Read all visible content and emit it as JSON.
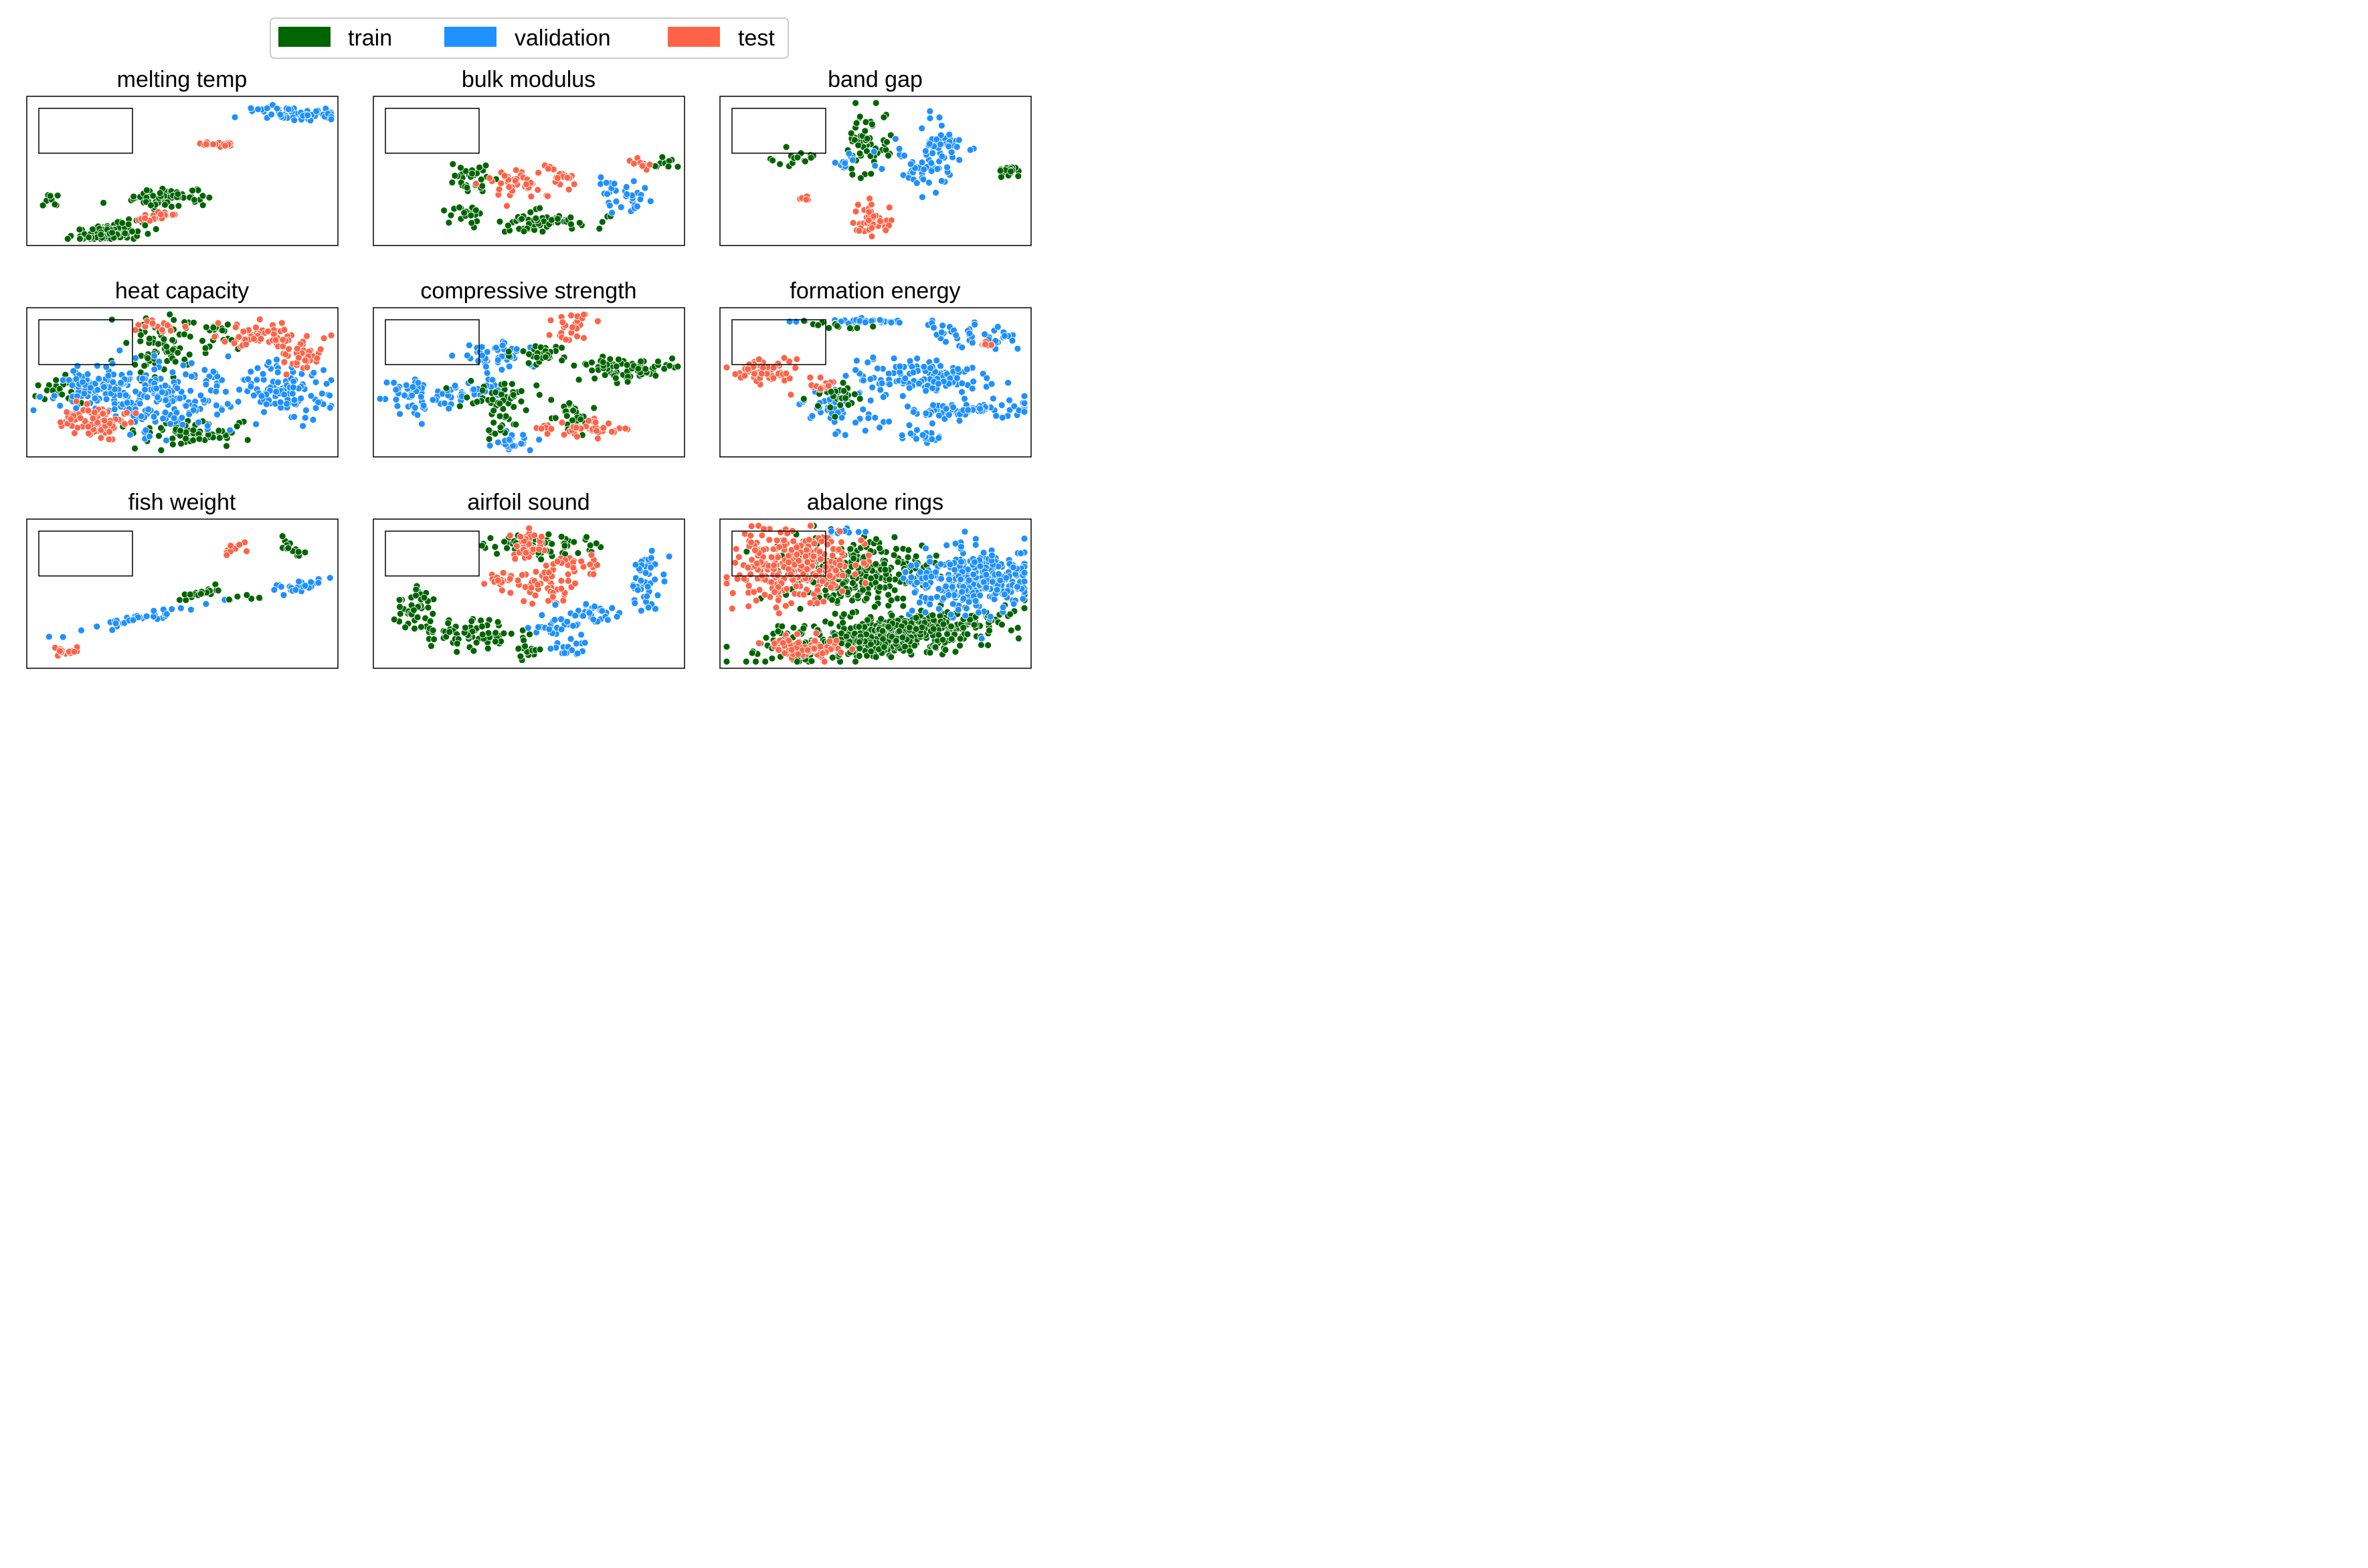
{
  "legend": {
    "items": [
      {
        "label": "train",
        "color": "#006400"
      },
      {
        "label": "validation",
        "color": "#1E90FF"
      },
      {
        "label": "test",
        "color": "#FF6347"
      }
    ]
  },
  "chart_data": [
    {
      "type": "scatter",
      "title": "melting temp",
      "clusters": [
        {
          "split": "train",
          "x": 0.25,
          "y": 0.95,
          "sx": 0.06,
          "sy": 0.03,
          "n": 110,
          "angle": -20
        },
        {
          "split": "train",
          "x": 0.46,
          "y": 0.7,
          "sx": 0.07,
          "sy": 0.035,
          "n": 70,
          "angle": -10
        },
        {
          "split": "train",
          "x": 0.06,
          "y": 0.72,
          "sx": 0.02,
          "sy": 0.03,
          "n": 8,
          "angle": 0
        },
        {
          "split": "test",
          "x": 0.43,
          "y": 0.84,
          "sx": 0.05,
          "sy": 0.02,
          "n": 18,
          "angle": -20
        },
        {
          "split": "test",
          "x": 0.61,
          "y": 0.3,
          "sx": 0.025,
          "sy": 0.012,
          "n": 18,
          "angle": 0
        },
        {
          "split": "validation",
          "x": 0.87,
          "y": 0.08,
          "sx": 0.07,
          "sy": 0.025,
          "n": 70,
          "angle": 5
        }
      ]
    },
    {
      "type": "scatter",
      "title": "bulk modulus",
      "clusters": [
        {
          "split": "train",
          "x": 0.3,
          "y": 0.55,
          "sx": 0.04,
          "sy": 0.05,
          "n": 30,
          "angle": 0
        },
        {
          "split": "train",
          "x": 0.28,
          "y": 0.8,
          "sx": 0.04,
          "sy": 0.03,
          "n": 20,
          "angle": 0
        },
        {
          "split": "train",
          "x": 0.53,
          "y": 0.88,
          "sx": 0.09,
          "sy": 0.04,
          "n": 60,
          "angle": 0
        },
        {
          "split": "train",
          "x": 0.94,
          "y": 0.45,
          "sx": 0.04,
          "sy": 0.02,
          "n": 12,
          "angle": 0
        },
        {
          "split": "test",
          "x": 0.45,
          "y": 0.58,
          "sx": 0.06,
          "sy": 0.06,
          "n": 40,
          "angle": 0
        },
        {
          "split": "test",
          "x": 0.6,
          "y": 0.55,
          "sx": 0.04,
          "sy": 0.06,
          "n": 20,
          "angle": 0
        },
        {
          "split": "test",
          "x": 0.88,
          "y": 0.45,
          "sx": 0.03,
          "sy": 0.02,
          "n": 10,
          "angle": 0
        },
        {
          "split": "validation",
          "x": 0.79,
          "y": 0.62,
          "sx": 0.04,
          "sy": 0.03,
          "n": 15,
          "angle": 0
        },
        {
          "split": "validation",
          "x": 0.83,
          "y": 0.72,
          "sx": 0.03,
          "sy": 0.04,
          "n": 20,
          "angle": 0
        }
      ]
    },
    {
      "type": "scatter",
      "title": "band gap",
      "clusters": [
        {
          "split": "train",
          "x": 0.48,
          "y": 0.3,
          "sx": 0.04,
          "sy": 0.12,
          "n": 55,
          "angle": 0
        },
        {
          "split": "train",
          "x": 0.95,
          "y": 0.5,
          "sx": 0.02,
          "sy": 0.03,
          "n": 20,
          "angle": 0
        },
        {
          "split": "train",
          "x": 0.24,
          "y": 0.4,
          "sx": 0.04,
          "sy": 0.03,
          "n": 15,
          "angle": 0
        },
        {
          "split": "validation",
          "x": 0.62,
          "y": 0.45,
          "sx": 0.06,
          "sy": 0.08,
          "n": 45,
          "angle": -30
        },
        {
          "split": "validation",
          "x": 0.7,
          "y": 0.3,
          "sx": 0.04,
          "sy": 0.1,
          "n": 30,
          "angle": 0
        },
        {
          "split": "validation",
          "x": 0.39,
          "y": 0.45,
          "sx": 0.02,
          "sy": 0.03,
          "n": 10,
          "angle": 0
        },
        {
          "split": "validation",
          "x": 0.75,
          "y": 0.3,
          "sx": 0.05,
          "sy": 0.03,
          "n": 15,
          "angle": 0
        },
        {
          "split": "test",
          "x": 0.49,
          "y": 0.87,
          "sx": 0.03,
          "sy": 0.05,
          "n": 50,
          "angle": 0
        },
        {
          "split": "test",
          "x": 0.26,
          "y": 0.7,
          "sx": 0.01,
          "sy": 0.01,
          "n": 5,
          "angle": 0
        }
      ]
    },
    {
      "type": "scatter",
      "title": "heat capacity",
      "clusters": [
        {
          "split": "train",
          "x": 0.43,
          "y": 0.25,
          "sx": 0.07,
          "sy": 0.12,
          "n": 70,
          "angle": 0
        },
        {
          "split": "train",
          "x": 0.12,
          "y": 0.55,
          "sx": 0.06,
          "sy": 0.06,
          "n": 40,
          "angle": 0
        },
        {
          "split": "train",
          "x": 0.53,
          "y": 0.88,
          "sx": 0.09,
          "sy": 0.05,
          "n": 70,
          "angle": 0
        },
        {
          "split": "train",
          "x": 0.62,
          "y": 0.15,
          "sx": 0.05,
          "sy": 0.06,
          "n": 30,
          "angle": 0
        },
        {
          "split": "validation",
          "x": 0.4,
          "y": 0.6,
          "sx": 0.14,
          "sy": 0.12,
          "n": 230,
          "angle": 0
        },
        {
          "split": "validation",
          "x": 0.83,
          "y": 0.55,
          "sx": 0.08,
          "sy": 0.1,
          "n": 110,
          "angle": -20
        },
        {
          "split": "validation",
          "x": 0.2,
          "y": 0.5,
          "sx": 0.06,
          "sy": 0.06,
          "n": 40,
          "angle": 0
        },
        {
          "split": "test",
          "x": 0.77,
          "y": 0.15,
          "sx": 0.07,
          "sy": 0.05,
          "n": 60,
          "angle": 0
        },
        {
          "split": "test",
          "x": 0.88,
          "y": 0.3,
          "sx": 0.04,
          "sy": 0.06,
          "n": 40,
          "angle": 0
        },
        {
          "split": "test",
          "x": 0.25,
          "y": 0.8,
          "sx": 0.05,
          "sy": 0.05,
          "n": 50,
          "angle": 0
        },
        {
          "split": "test",
          "x": 0.14,
          "y": 0.75,
          "sx": 0.03,
          "sy": 0.05,
          "n": 25,
          "angle": 0
        },
        {
          "split": "test",
          "x": 0.42,
          "y": 0.1,
          "sx": 0.04,
          "sy": 0.03,
          "n": 15,
          "angle": 0
        }
      ]
    },
    {
      "type": "scatter",
      "title": "compressive strength",
      "clusters": [
        {
          "split": "validation",
          "x": 0.12,
          "y": 0.6,
          "sx": 0.05,
          "sy": 0.08,
          "n": 50,
          "angle": 0
        },
        {
          "split": "validation",
          "x": 0.28,
          "y": 0.62,
          "sx": 0.03,
          "sy": 0.06,
          "n": 20,
          "angle": 0
        },
        {
          "split": "validation",
          "x": 0.4,
          "y": 0.3,
          "sx": 0.08,
          "sy": 0.05,
          "n": 50,
          "angle": 0
        },
        {
          "split": "validation",
          "x": 0.46,
          "y": 0.93,
          "sx": 0.03,
          "sy": 0.03,
          "n": 25,
          "angle": 0
        },
        {
          "split": "validation",
          "x": 0.37,
          "y": 0.52,
          "sx": 0.03,
          "sy": 0.03,
          "n": 15,
          "angle": 0
        },
        {
          "split": "train",
          "x": 0.83,
          "y": 0.4,
          "sx": 0.09,
          "sy": 0.04,
          "n": 80,
          "angle": -5
        },
        {
          "split": "train",
          "x": 0.41,
          "y": 0.6,
          "sx": 0.06,
          "sy": 0.06,
          "n": 40,
          "angle": 0
        },
        {
          "split": "train",
          "x": 0.63,
          "y": 0.75,
          "sx": 0.04,
          "sy": 0.06,
          "n": 30,
          "angle": 0
        },
        {
          "split": "train",
          "x": 0.4,
          "y": 0.8,
          "sx": 0.03,
          "sy": 0.05,
          "n": 20,
          "angle": 0
        },
        {
          "split": "train",
          "x": 0.55,
          "y": 0.3,
          "sx": 0.05,
          "sy": 0.04,
          "n": 30,
          "angle": 0
        },
        {
          "split": "test",
          "x": 0.65,
          "y": 0.12,
          "sx": 0.03,
          "sy": 0.06,
          "n": 25,
          "angle": 0
        },
        {
          "split": "test",
          "x": 0.7,
          "y": 0.85,
          "sx": 0.05,
          "sy": 0.04,
          "n": 35,
          "angle": 0
        },
        {
          "split": "test",
          "x": 0.55,
          "y": 0.85,
          "sx": 0.02,
          "sy": 0.02,
          "n": 8,
          "angle": 0
        }
      ]
    },
    {
      "type": "scatter",
      "title": "formation energy",
      "clusters": [
        {
          "split": "validation",
          "x": 0.64,
          "y": 0.45,
          "sx": 0.12,
          "sy": 0.07,
          "n": 120,
          "angle": 10
        },
        {
          "split": "validation",
          "x": 0.84,
          "y": 0.7,
          "sx": 0.1,
          "sy": 0.03,
          "n": 90,
          "angle": -5
        },
        {
          "split": "validation",
          "x": 0.38,
          "y": 0.7,
          "sx": 0.07,
          "sy": 0.08,
          "n": 60,
          "angle": 0
        },
        {
          "split": "validation",
          "x": 0.66,
          "y": 0.9,
          "sx": 0.03,
          "sy": 0.02,
          "n": 20,
          "angle": 0
        },
        {
          "split": "validation",
          "x": 0.5,
          "y": 0.05,
          "sx": 0.12,
          "sy": 0.01,
          "n": 40,
          "angle": 0
        },
        {
          "split": "validation",
          "x": 0.8,
          "y": 0.15,
          "sx": 0.1,
          "sy": 0.04,
          "n": 40,
          "angle": 20
        },
        {
          "split": "train",
          "x": 0.38,
          "y": 0.6,
          "sx": 0.04,
          "sy": 0.06,
          "n": 30,
          "angle": 0
        },
        {
          "split": "train",
          "x": 0.35,
          "y": 0.08,
          "sx": 0.06,
          "sy": 0.02,
          "n": 15,
          "angle": 0
        },
        {
          "split": "test",
          "x": 0.12,
          "y": 0.42,
          "sx": 0.05,
          "sy": 0.04,
          "n": 70,
          "angle": 0
        },
        {
          "split": "test",
          "x": 0.32,
          "y": 0.52,
          "sx": 0.03,
          "sy": 0.02,
          "n": 15,
          "angle": 0
        },
        {
          "split": "test",
          "x": 0.88,
          "y": 0.22,
          "sx": 0.02,
          "sy": 0.01,
          "n": 8,
          "angle": 0
        }
      ]
    },
    {
      "type": "scatter",
      "title": "fish weight",
      "clusters": [
        {
          "split": "test",
          "x": 0.1,
          "y": 0.92,
          "sx": 0.04,
          "sy": 0.02,
          "n": 15,
          "angle": -25
        },
        {
          "split": "validation",
          "x": 0.36,
          "y": 0.68,
          "sx": 0.12,
          "sy": 0.015,
          "n": 40,
          "angle": -25
        },
        {
          "split": "validation",
          "x": 0.88,
          "y": 0.45,
          "sx": 0.06,
          "sy": 0.02,
          "n": 25,
          "angle": -25
        },
        {
          "split": "train",
          "x": 0.56,
          "y": 0.5,
          "sx": 0.05,
          "sy": 0.015,
          "n": 20,
          "angle": -30
        },
        {
          "split": "train",
          "x": 0.86,
          "y": 0.16,
          "sx": 0.02,
          "sy": 0.04,
          "n": 15,
          "angle": -30
        },
        {
          "split": "train",
          "x": 0.72,
          "y": 0.52,
          "sx": 0.03,
          "sy": 0.01,
          "n": 6,
          "angle": 0
        },
        {
          "split": "test",
          "x": 0.66,
          "y": 0.18,
          "sx": 0.04,
          "sy": 0.02,
          "n": 10,
          "angle": -30
        }
      ]
    },
    {
      "type": "scatter",
      "title": "airfoil sound",
      "clusters": [
        {
          "split": "train",
          "x": 0.12,
          "y": 0.6,
          "sx": 0.03,
          "sy": 0.08,
          "n": 40,
          "angle": 0
        },
        {
          "split": "train",
          "x": 0.28,
          "y": 0.8,
          "sx": 0.09,
          "sy": 0.05,
          "n": 70,
          "angle": 0
        },
        {
          "split": "train",
          "x": 0.55,
          "y": 0.15,
          "sx": 0.09,
          "sy": 0.05,
          "n": 60,
          "angle": 0
        },
        {
          "split": "train",
          "x": 0.5,
          "y": 0.92,
          "sx": 0.02,
          "sy": 0.03,
          "n": 15,
          "angle": 0
        },
        {
          "split": "test",
          "x": 0.5,
          "y": 0.15,
          "sx": 0.03,
          "sy": 0.06,
          "n": 40,
          "angle": 0
        },
        {
          "split": "test",
          "x": 0.55,
          "y": 0.45,
          "sx": 0.05,
          "sy": 0.07,
          "n": 50,
          "angle": 0
        },
        {
          "split": "test",
          "x": 0.66,
          "y": 0.3,
          "sx": 0.04,
          "sy": 0.05,
          "n": 25,
          "angle": 0
        },
        {
          "split": "test",
          "x": 0.4,
          "y": 0.4,
          "sx": 0.02,
          "sy": 0.04,
          "n": 15,
          "angle": 0
        },
        {
          "split": "validation",
          "x": 0.9,
          "y": 0.4,
          "sx": 0.03,
          "sy": 0.1,
          "n": 50,
          "angle": 0
        },
        {
          "split": "validation",
          "x": 0.72,
          "y": 0.65,
          "sx": 0.06,
          "sy": 0.04,
          "n": 35,
          "angle": 0
        },
        {
          "split": "validation",
          "x": 0.58,
          "y": 0.75,
          "sx": 0.05,
          "sy": 0.04,
          "n": 25,
          "angle": 0
        },
        {
          "split": "validation",
          "x": 0.63,
          "y": 0.9,
          "sx": 0.03,
          "sy": 0.03,
          "n": 15,
          "angle": 0
        }
      ]
    },
    {
      "type": "scatter",
      "title": "abalone rings",
      "clusters": [
        {
          "split": "train",
          "x": 0.55,
          "y": 0.8,
          "sx": 0.2,
          "sy": 0.08,
          "n": 520,
          "angle": -18
        },
        {
          "split": "train",
          "x": 0.43,
          "y": 0.35,
          "sx": 0.13,
          "sy": 0.12,
          "n": 280,
          "angle": 0
        },
        {
          "split": "validation",
          "x": 0.82,
          "y": 0.4,
          "sx": 0.1,
          "sy": 0.12,
          "n": 330,
          "angle": 0
        },
        {
          "split": "validation",
          "x": 0.4,
          "y": 0.05,
          "sx": 0.04,
          "sy": 0.01,
          "n": 10,
          "angle": 0
        },
        {
          "split": "test",
          "x": 0.22,
          "y": 0.3,
          "sx": 0.1,
          "sy": 0.14,
          "n": 280,
          "angle": 0
        },
        {
          "split": "test",
          "x": 0.28,
          "y": 0.9,
          "sx": 0.06,
          "sy": 0.04,
          "n": 80,
          "angle": 0
        }
      ]
    }
  ]
}
